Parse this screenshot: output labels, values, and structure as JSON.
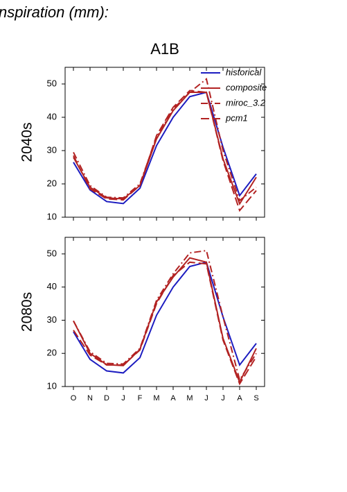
{
  "page_title": "nspiration (mm):",
  "chart_data": [
    {
      "type": "line",
      "title": "A1B",
      "ylabel": "2040s",
      "categories": [
        null,
        null,
        null,
        null,
        null,
        null,
        null,
        null,
        null,
        null,
        null,
        null
      ],
      "ylim": [
        10,
        55
      ],
      "yticks": [
        10,
        20,
        30,
        40,
        50
      ],
      "legend": "upper right",
      "series": [
        {
          "name": "historical",
          "color": "#1c1cc0",
          "style": "solid",
          "values": [
            26.5,
            18.2,
            14.7,
            14.1,
            18.7,
            31.5,
            40,
            46.2,
            47.5,
            31,
            16.5,
            23
          ]
        },
        {
          "name": "composite",
          "color": "#b22222",
          "style": "solid",
          "values": [
            28,
            19,
            15.8,
            15.5,
            19.5,
            33.5,
            42,
            47.5,
            47.5,
            27.5,
            14,
            22
          ]
        },
        {
          "name": "miroc_3.2",
          "color": "#b22222",
          "style": "dashdot",
          "values": [
            29.5,
            19.5,
            16,
            15.8,
            20,
            34,
            42.5,
            47.5,
            51.5,
            30,
            15,
            19
          ]
        },
        {
          "name": "pcm1",
          "color": "#b22222",
          "style": "dashed",
          "values": [
            28.5,
            18.5,
            15.5,
            15.2,
            19.5,
            34.5,
            43,
            48,
            47.5,
            27,
            12,
            18
          ]
        }
      ]
    },
    {
      "type": "line",
      "ylabel": "2080s",
      "categories": [
        "O",
        "N",
        "D",
        "J",
        "F",
        "M",
        "A",
        "M",
        "J",
        "J",
        "A",
        "S"
      ],
      "ylim": [
        10,
        55
      ],
      "yticks": [
        10,
        20,
        30,
        40,
        50
      ],
      "series": [
        {
          "name": "historical",
          "color": "#1c1cc0",
          "style": "solid",
          "values": [
            26.5,
            18.2,
            14.7,
            14.1,
            18.7,
            31.5,
            40,
            46.2,
            47.5,
            31,
            16.5,
            23
          ]
        },
        {
          "name": "composite",
          "color": "#b22222",
          "style": "solid",
          "values": [
            29.8,
            20,
            16.6,
            16.3,
            21.2,
            35.5,
            43,
            48.8,
            47.5,
            24.5,
            11.3,
            21.5
          ]
        },
        {
          "name": "miroc_3.2",
          "color": "#b22222",
          "style": "dashdot",
          "values": [
            29.8,
            20.5,
            17,
            16.8,
            21.5,
            36,
            44,
            50.3,
            51,
            31,
            12,
            20
          ]
        },
        {
          "name": "pcm1",
          "color": "#b22222",
          "style": "dashed",
          "values": [
            27,
            19.5,
            16.5,
            16.5,
            21,
            35,
            43.5,
            47.5,
            47,
            24,
            10.8,
            19
          ]
        }
      ]
    }
  ]
}
